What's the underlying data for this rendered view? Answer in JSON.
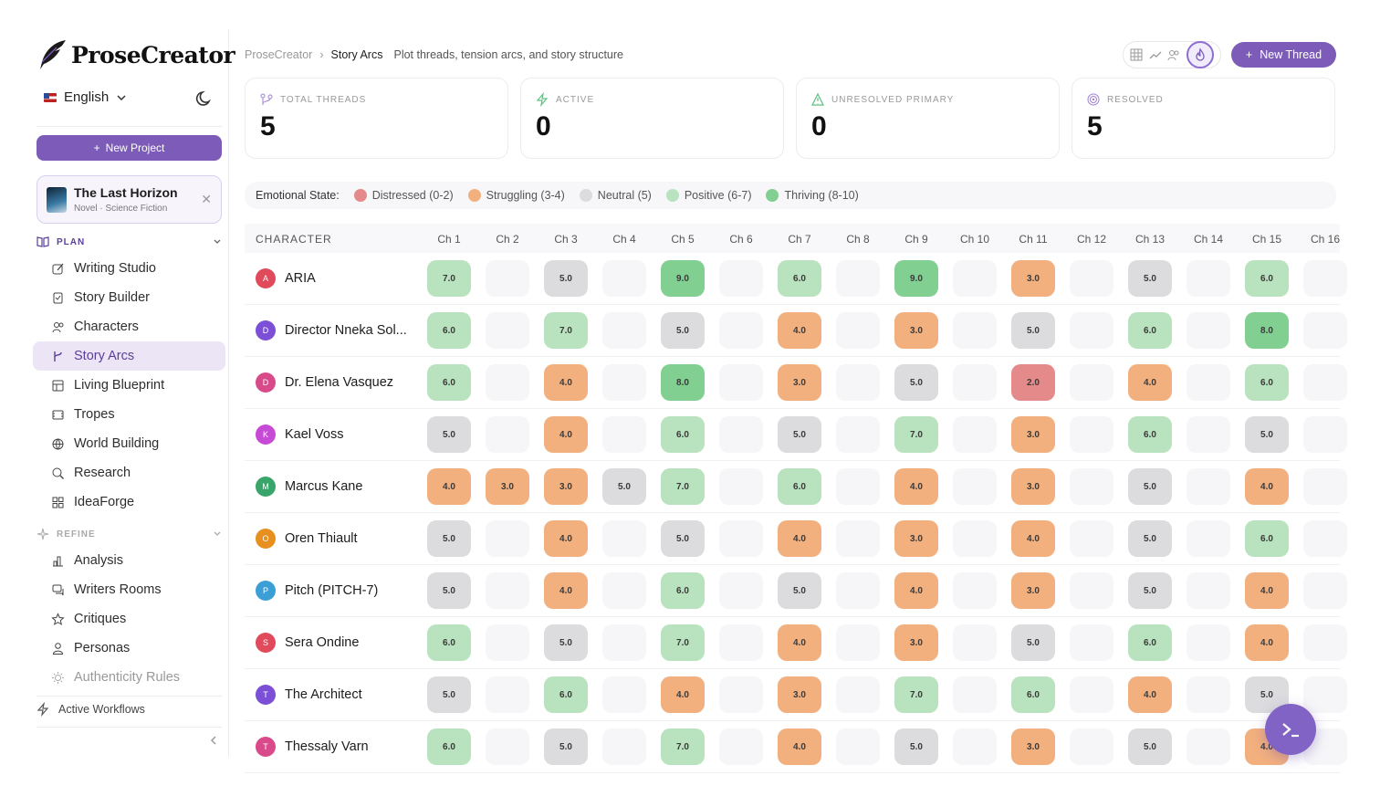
{
  "app": {
    "name": "ProseCreator"
  },
  "sidebar": {
    "language": "English",
    "new_project_label": "New Project",
    "project": {
      "title": "The Last Horizon",
      "subtitle": "Novel · Science Fiction"
    },
    "plan_label": "PLAN",
    "plan_items": [
      {
        "label": "Writing Studio",
        "icon": "pen-square-icon"
      },
      {
        "label": "Story Builder",
        "icon": "clipboard-icon"
      },
      {
        "label": "Characters",
        "icon": "users-icon"
      },
      {
        "label": "Story Arcs",
        "icon": "git-branch-icon",
        "active": true
      },
      {
        "label": "Living Blueprint",
        "icon": "blueprint-icon"
      },
      {
        "label": "Tropes",
        "icon": "film-icon"
      },
      {
        "label": "World Building",
        "icon": "globe-icon"
      },
      {
        "label": "Research",
        "icon": "search-icon"
      },
      {
        "label": "IdeaForge",
        "icon": "grid-icon"
      }
    ],
    "refine_label": "REFINE",
    "refine_items": [
      {
        "label": "Analysis",
        "icon": "bar-chart-icon"
      },
      {
        "label": "Writers Rooms",
        "icon": "chat-icon"
      },
      {
        "label": "Critiques",
        "icon": "star-icon"
      },
      {
        "label": "Personas",
        "icon": "person-icon"
      },
      {
        "label": "Authenticity Rules",
        "icon": "sun-icon"
      }
    ],
    "workflows_label": "Active Workflows"
  },
  "breadcrumb": {
    "root": "ProseCreator",
    "current": "Story Arcs",
    "description": "Plot threads, tension arcs, and story structure"
  },
  "header": {
    "new_thread_label": "New Thread"
  },
  "stats": [
    {
      "label": "TOTAL THREADS",
      "value": "5",
      "color": "#a07fd6"
    },
    {
      "label": "ACTIVE",
      "value": "0",
      "color": "#5fbf7f"
    },
    {
      "label": "UNRESOLVED PRIMARY",
      "value": "0",
      "color": "#5fbf7f"
    },
    {
      "label": "RESOLVED",
      "value": "5",
      "color": "#a07fd6"
    }
  ],
  "legend": {
    "title": "Emotional State:",
    "items": [
      {
        "label": "Distressed (0-2)",
        "color": "#e58a8a"
      },
      {
        "label": "Struggling (3-4)",
        "color": "#f2b07f"
      },
      {
        "label": "Neutral (5)",
        "color": "#dcdcdf"
      },
      {
        "label": "Positive (6-7)",
        "color": "#b9e2bf"
      },
      {
        "label": "Thriving (8-10)",
        "color": "#82cf92"
      }
    ]
  },
  "table": {
    "character_header": "CHARACTER",
    "chapters": [
      "Ch 1",
      "Ch 2",
      "Ch 3",
      "Ch 4",
      "Ch 5",
      "Ch 6",
      "Ch 7",
      "Ch 8",
      "Ch 9",
      "Ch 10",
      "Ch 11",
      "Ch 12",
      "Ch 13",
      "Ch 14",
      "Ch 15",
      "Ch 16"
    ],
    "rows": [
      {
        "initial": "A",
        "name": "ARIA",
        "avatar_color": "#e04a5a",
        "values": [
          "7.0",
          "",
          "5.0",
          "",
          "9.0",
          "",
          "6.0",
          "",
          "9.0",
          "",
          "3.0",
          "",
          "5.0",
          "",
          "6.0",
          ""
        ]
      },
      {
        "initial": "D",
        "name": "Director Nneka Sol...",
        "avatar_color": "#7b4fd6",
        "values": [
          "6.0",
          "",
          "7.0",
          "",
          "5.0",
          "",
          "4.0",
          "",
          "3.0",
          "",
          "5.0",
          "",
          "6.0",
          "",
          "8.0",
          ""
        ]
      },
      {
        "initial": "D",
        "name": "Dr. Elena Vasquez",
        "avatar_color": "#d94a8a",
        "values": [
          "6.0",
          "",
          "4.0",
          "",
          "8.0",
          "",
          "3.0",
          "",
          "5.0",
          "",
          "2.0",
          "",
          "4.0",
          "",
          "6.0",
          ""
        ]
      },
      {
        "initial": "K",
        "name": "Kael Voss",
        "avatar_color": "#c74ad6",
        "values": [
          "5.0",
          "",
          "4.0",
          "",
          "6.0",
          "",
          "5.0",
          "",
          "7.0",
          "",
          "3.0",
          "",
          "6.0",
          "",
          "5.0",
          ""
        ]
      },
      {
        "initial": "M",
        "name": "Marcus Kane",
        "avatar_color": "#3aa56a",
        "values": [
          "4.0",
          "3.0",
          "3.0",
          "5.0",
          "7.0",
          "",
          "6.0",
          "",
          "4.0",
          "",
          "3.0",
          "",
          "5.0",
          "",
          "4.0",
          ""
        ]
      },
      {
        "initial": "O",
        "name": "Oren Thiault",
        "avatar_color": "#e8901f",
        "values": [
          "5.0",
          "",
          "4.0",
          "",
          "5.0",
          "",
          "4.0",
          "",
          "3.0",
          "",
          "4.0",
          "",
          "5.0",
          "",
          "6.0",
          ""
        ]
      },
      {
        "initial": "P",
        "name": "Pitch (PITCH-7)",
        "avatar_color": "#3b9fd6",
        "values": [
          "5.0",
          "",
          "4.0",
          "",
          "6.0",
          "",
          "5.0",
          "",
          "4.0",
          "",
          "3.0",
          "",
          "5.0",
          "",
          "4.0",
          ""
        ]
      },
      {
        "initial": "S",
        "name": "Sera Ondine",
        "avatar_color": "#e04a5a",
        "values": [
          "6.0",
          "",
          "5.0",
          "",
          "7.0",
          "",
          "4.0",
          "",
          "3.0",
          "",
          "5.0",
          "",
          "6.0",
          "",
          "4.0",
          ""
        ]
      },
      {
        "initial": "T",
        "name": "The Architect",
        "avatar_color": "#7b4fd6",
        "values": [
          "5.0",
          "",
          "6.0",
          "",
          "4.0",
          "",
          "3.0",
          "",
          "7.0",
          "",
          "6.0",
          "",
          "4.0",
          "",
          "5.0",
          ""
        ]
      },
      {
        "initial": "T",
        "name": "Thessaly Varn",
        "avatar_color": "#d94a8a",
        "values": [
          "6.0",
          "",
          "5.0",
          "",
          "7.0",
          "",
          "4.0",
          "",
          "5.0",
          "",
          "3.0",
          "",
          "5.0",
          "",
          "4.0",
          ""
        ]
      }
    ]
  },
  "colors": {
    "accent": "#7c5cb8",
    "empty_cell": "#f6f6f8"
  }
}
